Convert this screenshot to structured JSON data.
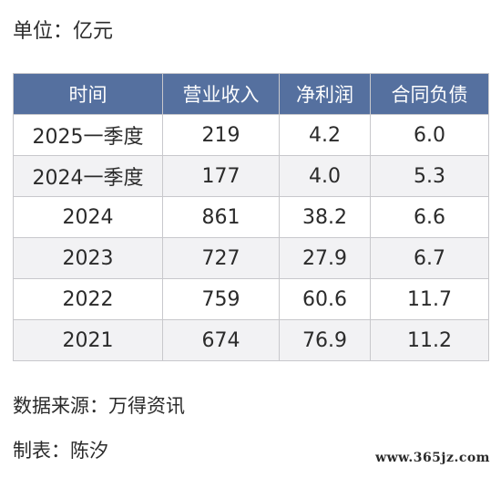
{
  "unit_label": "单位：亿元",
  "table": {
    "headers": [
      "时间",
      "营业收入",
      "净利润",
      "合同负债"
    ],
    "rows": [
      [
        "2025一季度",
        "219",
        "4.2",
        "6.0"
      ],
      [
        "2024一季度",
        "177",
        "4.0",
        "5.3"
      ],
      [
        "2024",
        "861",
        "38.2",
        "6.6"
      ],
      [
        "2023",
        "727",
        "27.9",
        "6.7"
      ],
      [
        "2022",
        "759",
        "60.6",
        "11.7"
      ],
      [
        "2021",
        "674",
        "76.9",
        "11.2"
      ]
    ]
  },
  "source_label": "数据来源：万得资讯",
  "maker_label": "制表：陈汐",
  "watermark": "www.365jz.com",
  "colors": {
    "header_bg": "#55709f",
    "header_text": "#ffffff",
    "border": "#c8c8cc",
    "stripe": "#f2f2f4"
  }
}
